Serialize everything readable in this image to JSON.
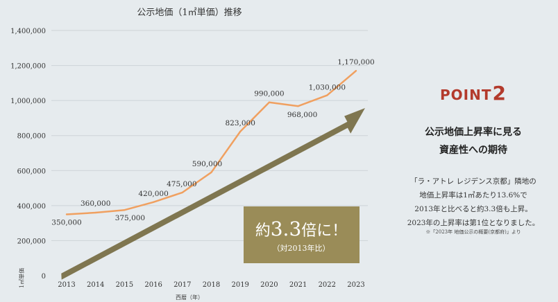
{
  "chart_data": {
    "type": "line",
    "title": "公示地価（1㎡単価）推移",
    "xlabel": "西暦（年）",
    "ylabel": "1㎡単価",
    "categories": [
      "2013",
      "2014",
      "2015",
      "2016",
      "2017",
      "2018",
      "2019",
      "2020",
      "2021",
      "2022",
      "2023"
    ],
    "values": [
      350000,
      360000,
      375000,
      420000,
      475000,
      590000,
      823000,
      990000,
      968000,
      1030000,
      1170000
    ],
    "data_labels": [
      "350,000",
      "360,000",
      "375,000",
      "420,000",
      "475,000",
      "590,000",
      "823,000",
      "990,000",
      "968,000",
      "1,030,000",
      "1,170,000"
    ],
    "ylim": [
      0,
      1400000
    ],
    "yticks": [
      "0",
      "200,000",
      "400,000",
      "600,000",
      "800,000",
      "1,000,000",
      "1,200,000",
      "1,400,000"
    ],
    "grid": true,
    "colors": {
      "line": "#f0a060",
      "arrow": "#7f7650",
      "callout": "#9a8c58"
    },
    "callout": {
      "main_prefix": "約",
      "main_number": "3.3",
      "main_suffix": "倍に！",
      "sub": "（対2013年比）"
    }
  },
  "panel": {
    "point_label": "POINT",
    "point_number": "2",
    "heading_line1": "公示地価上昇率に見る",
    "heading_line2": "資産性への期待",
    "body_line1": "「ラ・アトレ レジデンス京都」隣地の",
    "body_line2": "地価上昇率は1㎡あたり13.6%で",
    "body_line3": "2013年と比べると約3.3倍も上昇。",
    "body_line4": "2023年の上昇率は第1位となりました。",
    "note": "※「2023年 地価公示の概要(京都府)」より"
  }
}
